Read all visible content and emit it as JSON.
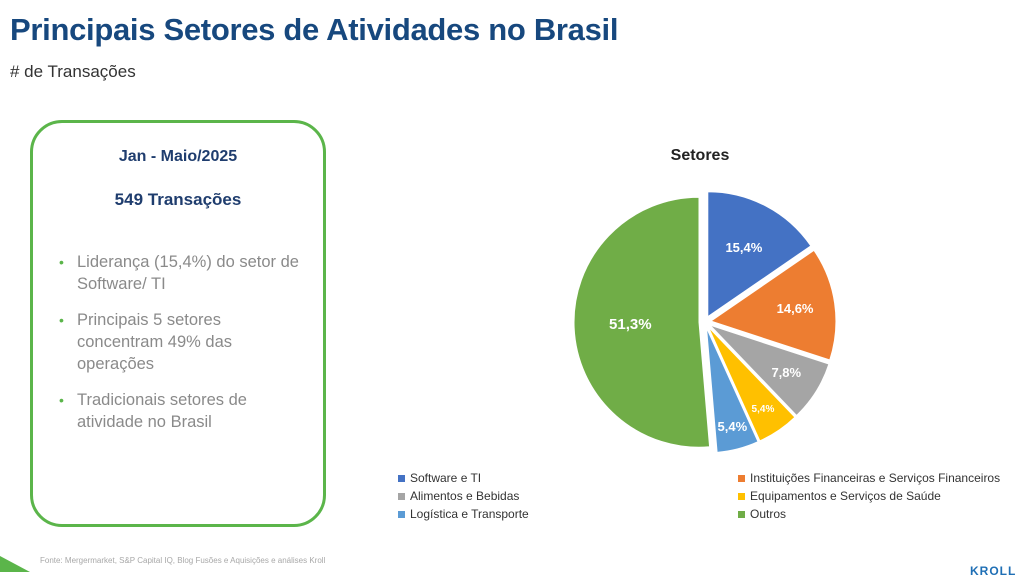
{
  "header": {
    "title": "Principais Setores de Atividades no Brasil",
    "subtitle": "# de Transações"
  },
  "card": {
    "period": "Jan - Maio/2025",
    "count": "549 Transações",
    "bullets": [
      "Liderança (15,4%) do setor de Software/ TI",
      "Principais 5 setores concentram 49% das operações",
      "Tradicionais setores de atividade no Brasil"
    ],
    "border_color": "#5bb54a"
  },
  "chart_data": {
    "type": "pie",
    "title": "Setores",
    "categories": [
      "Software e  TI",
      "Instituições Financeiras e Serviços Financeiros",
      "Alimentos e Bebidas",
      "Equipamentos e Serviços de Saúde",
      "Logística e Transporte",
      "Outros"
    ],
    "values": [
      15.4,
      14.6,
      7.8,
      5.4,
      5.4,
      51.3
    ],
    "labels": [
      "15,4%",
      "14,6%",
      "7,8%",
      "5,4%",
      "5,4%",
      "51,3%"
    ],
    "colors": [
      "#4472c4",
      "#ed7d31",
      "#a5a5a5",
      "#ffc000",
      "#5b9bd5",
      "#70ad47"
    ],
    "legend_position": "bottom"
  },
  "footer": {
    "source": "Fonte: Mergermarket, S&P Capital IQ, Blog Fusões e Aquisições e análises Kroll",
    "logo": "KROLL"
  }
}
